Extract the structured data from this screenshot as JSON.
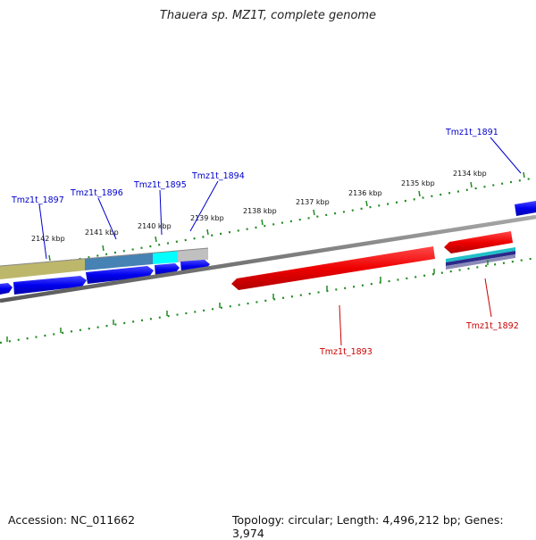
{
  "title": "Thauera sp. MZ1T, complete genome",
  "footer": {
    "accession": "Accession: NC_011662",
    "summary": "Topology: circular; Length: 4,496,212 bp; Genes: 3,974"
  },
  "ruler_labels": [
    "2142 kbp",
    "2141 kbp",
    "2140 kbp",
    "2139 kbp",
    "2138 kbp",
    "2137 kbp",
    "2136 kbp",
    "2135 kbp",
    "2134 kbp"
  ],
  "gene_labels": {
    "tmz1t_1897": "Tmz1t_1897",
    "tmz1t_1896": "Tmz1t_1896",
    "tmz1t_1895": "Tmz1t_1895",
    "tmz1t_1894": "Tmz1t_1894",
    "tmz1t_1891": "Tmz1t_1891",
    "tmz1t_1893": "Tmz1t_1893",
    "tmz1t_1892": "Tmz1t_1892"
  },
  "colors": {
    "forward_label": "#0000cc",
    "reverse_label": "#cc0000",
    "forward_gene": "#0000ee",
    "reverse_gene": "#ee0000",
    "tick": "#228b22",
    "backbone": "#808080"
  }
}
